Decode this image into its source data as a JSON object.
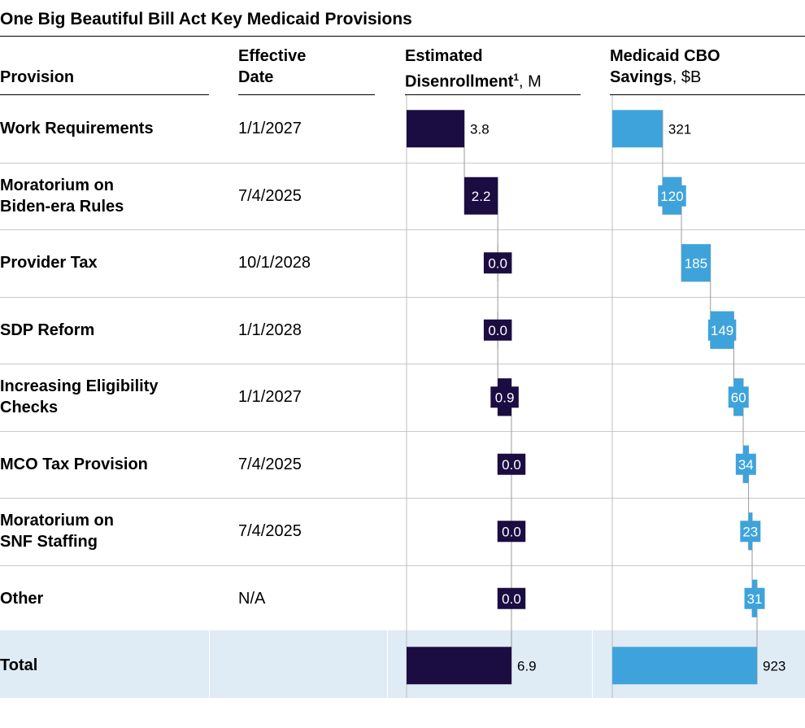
{
  "title": "One Big Beautiful Bill Act Key Medicaid Provisions",
  "columns": {
    "provision": "Provision",
    "effective_date": [
      "Effective",
      "Date"
    ],
    "disenrollment": {
      "line1": "Estimated",
      "line2_bold": "Disenrollment",
      "sup": "1",
      "unit": ", M"
    },
    "savings": {
      "line1": "Medicaid CBO",
      "line2_bold": "Savings",
      "unit": ", $B"
    }
  },
  "rows": [
    {
      "provision": [
        "Work Requirements"
      ],
      "date": "1/1/2027"
    },
    {
      "provision": [
        "Moratorium on",
        "Biden-era Rules"
      ],
      "date": "7/4/2025"
    },
    {
      "provision": [
        "Provider Tax"
      ],
      "date": "10/1/2028"
    },
    {
      "provision": [
        "SDP Reform"
      ],
      "date": "1/1/2028"
    },
    {
      "provision": [
        "Increasing Eligibility",
        "Checks"
      ],
      "date": "1/1/2027"
    },
    {
      "provision": [
        "MCO Tax Provision"
      ],
      "date": "7/4/2025"
    },
    {
      "provision": [
        "Moratorium on",
        "SNF Staffing"
      ],
      "date": "7/4/2025"
    },
    {
      "provision": [
        "Other"
      ],
      "date": "N/A"
    },
    {
      "provision": [
        "Total"
      ],
      "date": ""
    }
  ],
  "colors": {
    "disenrollment_bar": "#1b0c42",
    "savings_bar": "#3ea3db",
    "total_band": "#dfebf5"
  },
  "chart_data": [
    {
      "type": "bar",
      "subtype": "waterfall",
      "orientation": "horizontal",
      "name": "Estimated Disenrollment, M",
      "categories": [
        "Work Requirements",
        "Moratorium on Biden-era Rules",
        "Provider Tax",
        "SDP Reform",
        "Increasing Eligibility Checks",
        "MCO Tax Provision",
        "Moratorium on SNF Staffing",
        "Other",
        "Total"
      ],
      "values": [
        3.8,
        2.2,
        0.0,
        0.0,
        0.9,
        0.0,
        0.0,
        0.0,
        6.9
      ],
      "labels": [
        "3.8",
        "2.2",
        "0.0",
        "0.0",
        "0.9",
        "0.0",
        "0.0",
        "0.0",
        "6.9"
      ],
      "xlim": [
        0,
        6.9
      ]
    },
    {
      "type": "bar",
      "subtype": "waterfall",
      "orientation": "horizontal",
      "name": "Medicaid CBO Savings, $B",
      "categories": [
        "Work Requirements",
        "Moratorium on Biden-era Rules",
        "Provider Tax",
        "SDP Reform",
        "Increasing Eligibility Checks",
        "MCO Tax Provision",
        "Moratorium on SNF Staffing",
        "Other",
        "Total"
      ],
      "values": [
        321,
        120,
        185,
        149,
        60,
        34,
        23,
        31,
        923
      ],
      "labels": [
        "321",
        "120",
        "185",
        "149",
        "60",
        "34",
        "23",
        "31",
        "923"
      ],
      "xlim": [
        0,
        923
      ]
    }
  ]
}
